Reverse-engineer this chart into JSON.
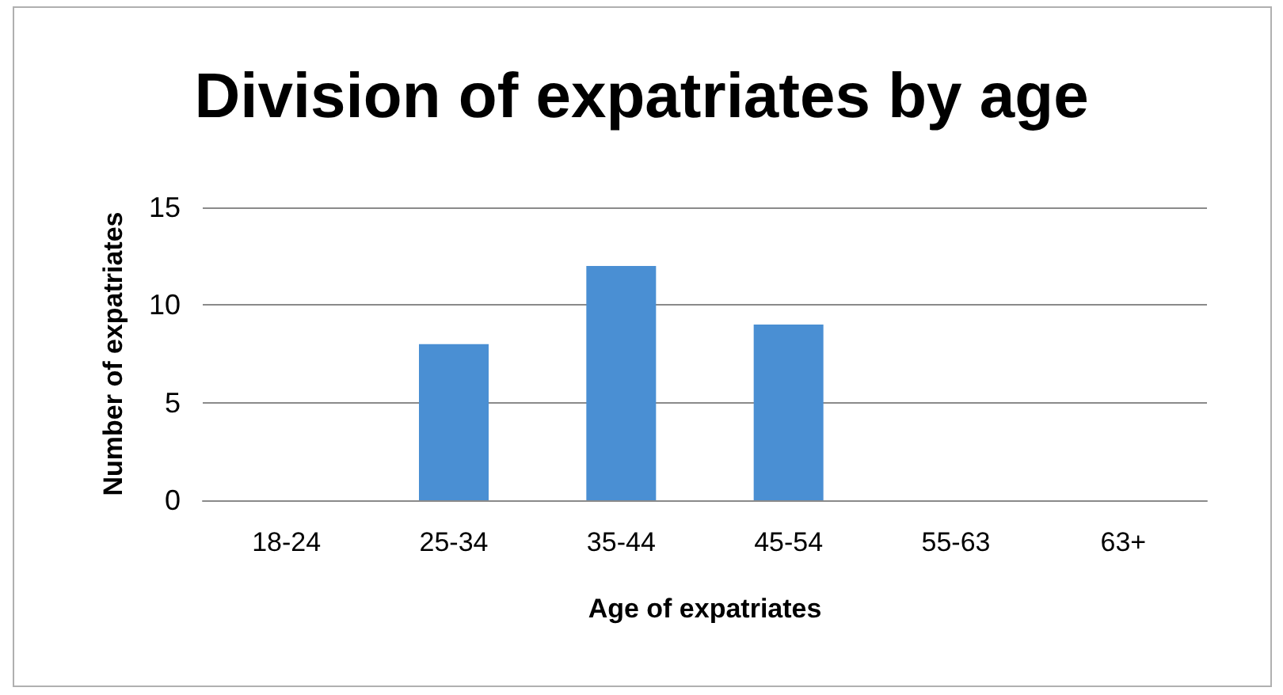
{
  "chart_data": {
    "type": "bar",
    "title": "Division of expatriates by age",
    "xlabel": "Age of expatriates",
    "ylabel": "Number of expatriates",
    "categories": [
      "18-24",
      "25-34",
      "35-44",
      "45-54",
      "55-63",
      "63+"
    ],
    "values": [
      0,
      8,
      12,
      9,
      0,
      0
    ],
    "color": "#4a8fd3",
    "ylim": [
      0,
      15
    ],
    "yticks": [
      0,
      5,
      10,
      15
    ],
    "grid": "y"
  }
}
